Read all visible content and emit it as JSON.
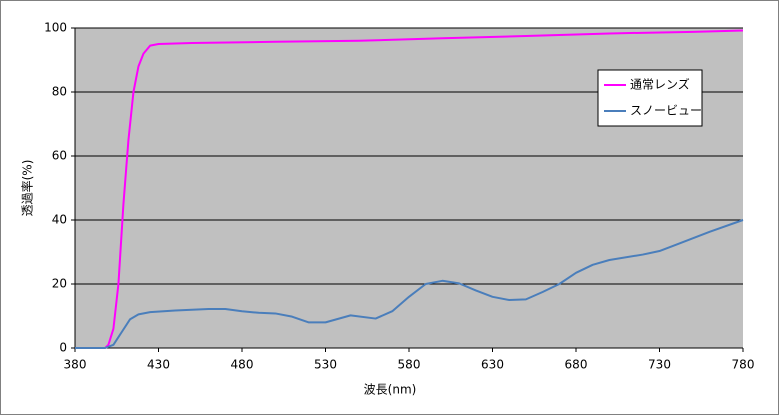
{
  "chart_data": {
    "type": "line",
    "x_label": "波長(nm)",
    "y_label": "透過率(%)",
    "xlim": [
      380,
      780
    ],
    "xticks": [
      380,
      430,
      480,
      530,
      580,
      630,
      680,
      730,
      780
    ],
    "ylim": [
      0,
      100
    ],
    "yticks": [
      0,
      20,
      40,
      60,
      80,
      100
    ],
    "grid": true,
    "plot_background": "#c0c0c0",
    "legend_position": "upper right",
    "series": [
      {
        "name": "通常レンズ",
        "color": "#ff00ff",
        "x": [
          380,
          390,
          398,
          400,
          403,
          406,
          409,
          412,
          415,
          418,
          421,
          425,
          430,
          450,
          500,
          550,
          600,
          650,
          700,
          750,
          780
        ],
        "values": [
          0,
          0,
          0,
          1,
          6,
          20,
          45,
          65,
          80,
          88,
          92,
          94.5,
          95,
          95.3,
          95.7,
          96,
          96.8,
          97.5,
          98.3,
          98.8,
          99.2
        ]
      },
      {
        "name": "スノービュー",
        "color": "#4a7ebb",
        "x": [
          380,
          398,
          403,
          408,
          413,
          418,
          425,
          440,
          460,
          470,
          480,
          490,
          500,
          510,
          520,
          530,
          545,
          560,
          570,
          580,
          590,
          600,
          610,
          620,
          630,
          640,
          650,
          660,
          670,
          680,
          690,
          700,
          720,
          730,
          740,
          760,
          780
        ],
        "values": [
          0,
          0,
          1,
          5,
          9,
          10.5,
          11.2,
          11.7,
          12.2,
          12.2,
          11.5,
          11,
          10.8,
          9.8,
          8,
          8,
          10.2,
          9.2,
          11.5,
          16,
          20,
          21,
          20.2,
          18,
          16,
          15,
          15.2,
          17.5,
          20,
          23.5,
          26,
          27.5,
          29.2,
          30.3,
          32.3,
          36.3,
          40
        ]
      }
    ]
  }
}
